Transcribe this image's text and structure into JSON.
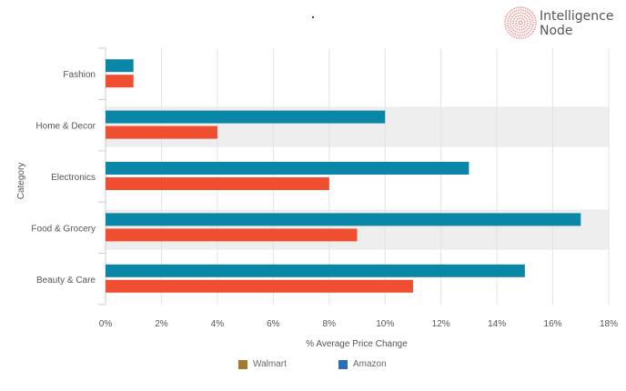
{
  "logo": {
    "line1": "Intelligence",
    "line2": "Node"
  },
  "chart_data": {
    "type": "bar",
    "orientation": "horizontal",
    "title": "",
    "xlabel": "% Average Price Change",
    "ylabel": "Category",
    "xlim": [
      0,
      18
    ],
    "xticks": [
      "0%",
      "2%",
      "4%",
      "6%",
      "8%",
      "10%",
      "12%",
      "14%",
      "16%",
      "18%"
    ],
    "xtick_values": [
      0,
      2,
      4,
      6,
      8,
      10,
      12,
      14,
      16,
      18
    ],
    "categories": [
      "Fashion",
      "Home & Decor",
      "Electronics",
      "Food & Grocery",
      "Beauty & Care"
    ],
    "series": [
      {
        "name": "Amazon",
        "color": "#0a86a6",
        "values": [
          1,
          10,
          13,
          17,
          15
        ]
      },
      {
        "name": "Walmart",
        "color": "#f04e31",
        "values": [
          1,
          4,
          8,
          9,
          11
        ]
      }
    ],
    "highlighted_rows": [
      "Home & Decor",
      "Food & Grocery"
    ],
    "legend": [
      {
        "name": "Walmart",
        "color": "#a07a2e"
      },
      {
        "name": "Amazon",
        "color": "#2a6db0"
      }
    ],
    "legend_position": "bottom",
    "grid": true
  }
}
